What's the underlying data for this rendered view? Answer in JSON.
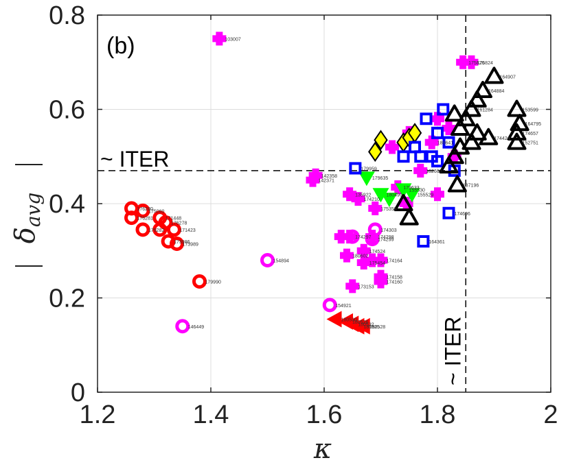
{
  "chart_data": {
    "type": "scatter",
    "panel_label": "(b)",
    "xlabel": "κ",
    "ylabel_main": "δ",
    "ylabel_sub": "avg",
    "xlim": [
      1.2,
      2.0
    ],
    "ylim": [
      0,
      0.8
    ],
    "x_ticks": [
      "1.2",
      "1.4",
      "1.6",
      "1.8",
      "2"
    ],
    "y_ticks": [
      "0",
      "0.2",
      "0.4",
      "0.6",
      "0.8"
    ],
    "grid": true,
    "reference_lines": [
      {
        "orientation": "horizontal",
        "value": 0.47,
        "label": "~ ITER"
      },
      {
        "orientation": "vertical",
        "value": 1.85,
        "label": "~ ITER"
      }
    ],
    "series": [
      {
        "marker": "plus",
        "color": "#ff00ff",
        "points": [
          {
            "x": 1.415,
            "y": 0.75,
            "label": "103007"
          },
          {
            "x": 1.585,
            "y": 0.46,
            "label": "142358"
          },
          {
            "x": 1.58,
            "y": 0.45,
            "label": "142371"
          },
          {
            "x": 1.645,
            "y": 0.42,
            "label": "135922"
          },
          {
            "x": 1.66,
            "y": 0.41,
            "label": "174210"
          },
          {
            "x": 1.63,
            "y": 0.33,
            "label": ""
          },
          {
            "x": 1.645,
            "y": 0.33,
            "label": "174297"
          },
          {
            "x": 1.685,
            "y": 0.33,
            "label": "174298"
          },
          {
            "x": 1.67,
            "y": 0.3,
            "label": "174524"
          },
          {
            "x": 1.64,
            "y": 0.29,
            "label": "180602"
          },
          {
            "x": 1.67,
            "y": 0.275,
            "label": "175454"
          },
          {
            "x": 1.685,
            "y": 0.28,
            "label": ""
          },
          {
            "x": 1.7,
            "y": 0.28,
            "label": "174164"
          },
          {
            "x": 1.65,
            "y": 0.225,
            "label": "173153"
          },
          {
            "x": 1.7,
            "y": 0.245,
            "label": "174158"
          },
          {
            "x": 1.7,
            "y": 0.235,
            "label": "174160"
          },
          {
            "x": 1.69,
            "y": 0.39,
            "label": "175358"
          },
          {
            "x": 1.73,
            "y": 0.435,
            "label": "179633"
          },
          {
            "x": 1.745,
            "y": 0.4,
            "label": ""
          },
          {
            "x": 1.77,
            "y": 0.47,
            "label": "182660"
          },
          {
            "x": 1.8,
            "y": 0.42,
            "label": ""
          },
          {
            "x": 1.845,
            "y": 0.7,
            "label": "175826"
          },
          {
            "x": 1.86,
            "y": 0.7,
            "label": "175824"
          },
          {
            "x": 1.79,
            "y": 0.53,
            "label": "180641"
          },
          {
            "x": 1.82,
            "y": 0.56,
            "label": ""
          },
          {
            "x": 1.8,
            "y": 0.58,
            "label": ""
          },
          {
            "x": 1.75,
            "y": 0.55,
            "label": ""
          },
          {
            "x": 1.72,
            "y": 0.52,
            "label": ""
          },
          {
            "x": 1.83,
            "y": 0.5,
            "label": ""
          }
        ]
      },
      {
        "marker": "circle",
        "color": "#ff00ff",
        "points": [
          {
            "x": 1.5,
            "y": 0.28,
            "label": "154894"
          },
          {
            "x": 1.61,
            "y": 0.185,
            "label": "154921"
          },
          {
            "x": 1.65,
            "y": 0.33,
            "label": ""
          },
          {
            "x": 1.69,
            "y": 0.345,
            "label": "174303"
          },
          {
            "x": 1.685,
            "y": 0.325,
            "label": "174299"
          },
          {
            "x": 1.35,
            "y": 0.14,
            "label": "146449"
          }
        ]
      },
      {
        "marker": "circle",
        "color": "#ff0000",
        "points": [
          {
            "x": 1.26,
            "y": 0.39,
            "label": "176280"
          },
          {
            "x": 1.28,
            "y": 0.385,
            "label": "175060"
          },
          {
            "x": 1.26,
            "y": 0.37,
            "label": "176281"
          },
          {
            "x": 1.28,
            "y": 0.345,
            "label": "176282"
          },
          {
            "x": 1.31,
            "y": 0.37,
            "label": "171448"
          },
          {
            "x": 1.32,
            "y": 0.36,
            "label": "176278"
          },
          {
            "x": 1.31,
            "y": 0.345,
            "label": ""
          },
          {
            "x": 1.335,
            "y": 0.345,
            "label": "171423"
          },
          {
            "x": 1.325,
            "y": 0.32,
            "label": "173986"
          },
          {
            "x": 1.34,
            "y": 0.315,
            "label": "173989"
          },
          {
            "x": 1.38,
            "y": 0.235,
            "label": "179990"
          }
        ]
      },
      {
        "marker": "triangle-left",
        "color": "#ff0000",
        "points": [
          {
            "x": 1.62,
            "y": 0.155,
            "label": "180530"
          },
          {
            "x": 1.64,
            "y": 0.15,
            "label": "180526"
          },
          {
            "x": 1.65,
            "y": 0.145,
            "label": "180532"
          },
          {
            "x": 1.66,
            "y": 0.14,
            "label": "180525"
          },
          {
            "x": 1.67,
            "y": 0.14,
            "label": "180528"
          }
        ]
      },
      {
        "marker": "diamond",
        "color": "#ffff00",
        "points": [
          {
            "x": 1.69,
            "y": 0.51,
            "label": ""
          },
          {
            "x": 1.7,
            "y": 0.535,
            "label": ""
          },
          {
            "x": 1.74,
            "y": 0.53,
            "label": ""
          },
          {
            "x": 1.75,
            "y": 0.54,
            "label": ""
          },
          {
            "x": 1.76,
            "y": 0.55,
            "label": ""
          }
        ]
      },
      {
        "marker": "triangle-down",
        "color": "#00ff00",
        "points": [
          {
            "x": 1.675,
            "y": 0.455,
            "label": "179635"
          },
          {
            "x": 1.7,
            "y": 0.42,
            "label": "180499"
          },
          {
            "x": 1.715,
            "y": 0.41,
            "label": ""
          },
          {
            "x": 1.74,
            "y": 0.43,
            "label": "155530"
          },
          {
            "x": 1.755,
            "y": 0.42,
            "label": "155529"
          }
        ]
      },
      {
        "marker": "square",
        "color": "#0000ff",
        "points": [
          {
            "x": 1.655,
            "y": 0.475,
            "label": "179959"
          },
          {
            "x": 1.775,
            "y": 0.32,
            "label": "164361"
          },
          {
            "x": 1.82,
            "y": 0.38,
            "label": "174696"
          },
          {
            "x": 1.78,
            "y": 0.58,
            "label": ""
          },
          {
            "x": 1.81,
            "y": 0.6,
            "label": ""
          },
          {
            "x": 1.8,
            "y": 0.55,
            "label": ""
          },
          {
            "x": 1.82,
            "y": 0.53,
            "label": ""
          },
          {
            "x": 1.79,
            "y": 0.5,
            "label": ""
          },
          {
            "x": 1.76,
            "y": 0.52,
            "label": ""
          },
          {
            "x": 1.8,
            "y": 0.49,
            "label": ""
          },
          {
            "x": 1.83,
            "y": 0.47,
            "label": ""
          },
          {
            "x": 1.77,
            "y": 0.5,
            "label": ""
          },
          {
            "x": 1.74,
            "y": 0.5,
            "label": ""
          }
        ]
      },
      {
        "marker": "triangle-up",
        "color": "#000000",
        "points": [
          {
            "x": 1.74,
            "y": 0.4,
            "label": ""
          },
          {
            "x": 1.75,
            "y": 0.37,
            "label": ""
          },
          {
            "x": 1.835,
            "y": 0.44,
            "label": "137196"
          },
          {
            "x": 1.9,
            "y": 0.67,
            "label": "164907"
          },
          {
            "x": 1.88,
            "y": 0.64,
            "label": "164884"
          },
          {
            "x": 1.87,
            "y": 0.62,
            "label": ""
          },
          {
            "x": 1.86,
            "y": 0.6,
            "label": "161284"
          },
          {
            "x": 1.85,
            "y": 0.58,
            "label": ""
          },
          {
            "x": 1.84,
            "y": 0.56,
            "label": ""
          },
          {
            "x": 1.83,
            "y": 0.59,
            "label": ""
          },
          {
            "x": 1.87,
            "y": 0.55,
            "label": ""
          },
          {
            "x": 1.89,
            "y": 0.54,
            "label": "174424"
          },
          {
            "x": 1.94,
            "y": 0.6,
            "label": "153599"
          },
          {
            "x": 1.945,
            "y": 0.57,
            "label": "164795"
          },
          {
            "x": 1.94,
            "y": 0.55,
            "label": "174657"
          },
          {
            "x": 1.94,
            "y": 0.53,
            "label": "152751"
          },
          {
            "x": 1.86,
            "y": 0.53,
            "label": ""
          },
          {
            "x": 1.84,
            "y": 0.52,
            "label": ""
          },
          {
            "x": 1.82,
            "y": 0.48,
            "label": ""
          },
          {
            "x": 1.83,
            "y": 0.5,
            "label": ""
          }
        ]
      }
    ]
  }
}
